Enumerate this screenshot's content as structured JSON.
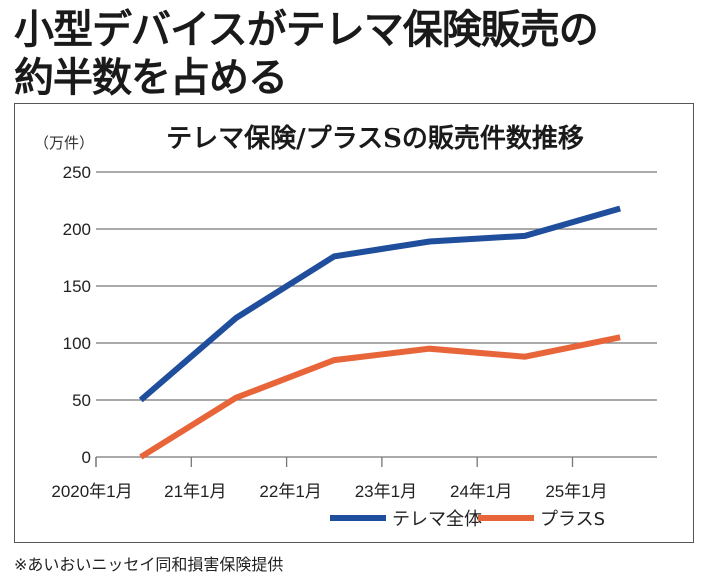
{
  "headline": {
    "line1": "小型デバイスがテレマ保険販売の",
    "line2": "約半数を占める"
  },
  "source": "※あいおいニッセイ同和損害保険提供",
  "colors": {
    "telema": "#1f4e9c",
    "plus_s": "#e8653a",
    "grid": "#777777"
  },
  "chart_data": {
    "type": "line",
    "title": "テレマ保険/プラスSの販売件数推移",
    "ylabel": "（万件）",
    "xlabel": "",
    "ylim": [
      0,
      250
    ],
    "yticks": [
      0,
      50,
      100,
      150,
      200,
      250
    ],
    "xlim": [
      2020.0,
      2025.9
    ],
    "xticks": [
      {
        "value": 2020.0,
        "label": "2020年1月"
      },
      {
        "value": 2021.0,
        "label": "21年1月"
      },
      {
        "value": 2022.0,
        "label": "22年1月"
      },
      {
        "value": 2023.0,
        "label": "23年1月"
      },
      {
        "value": 2024.0,
        "label": "24年1月"
      },
      {
        "value": 2025.0,
        "label": "25年1月"
      }
    ],
    "grid": true,
    "legend": "bottom-right",
    "x": [
      2020.47,
      2021.47,
      2022.5,
      2023.5,
      2024.5,
      2025.5
    ],
    "series": [
      {
        "name": "テレマ全体",
        "color": "#1f4e9c",
        "values": [
          50,
          122,
          176,
          189,
          194,
          218
        ]
      },
      {
        "name": "プラスS",
        "color": "#e8653a",
        "values": [
          0,
          52,
          85,
          95,
          88,
          105
        ]
      }
    ]
  }
}
